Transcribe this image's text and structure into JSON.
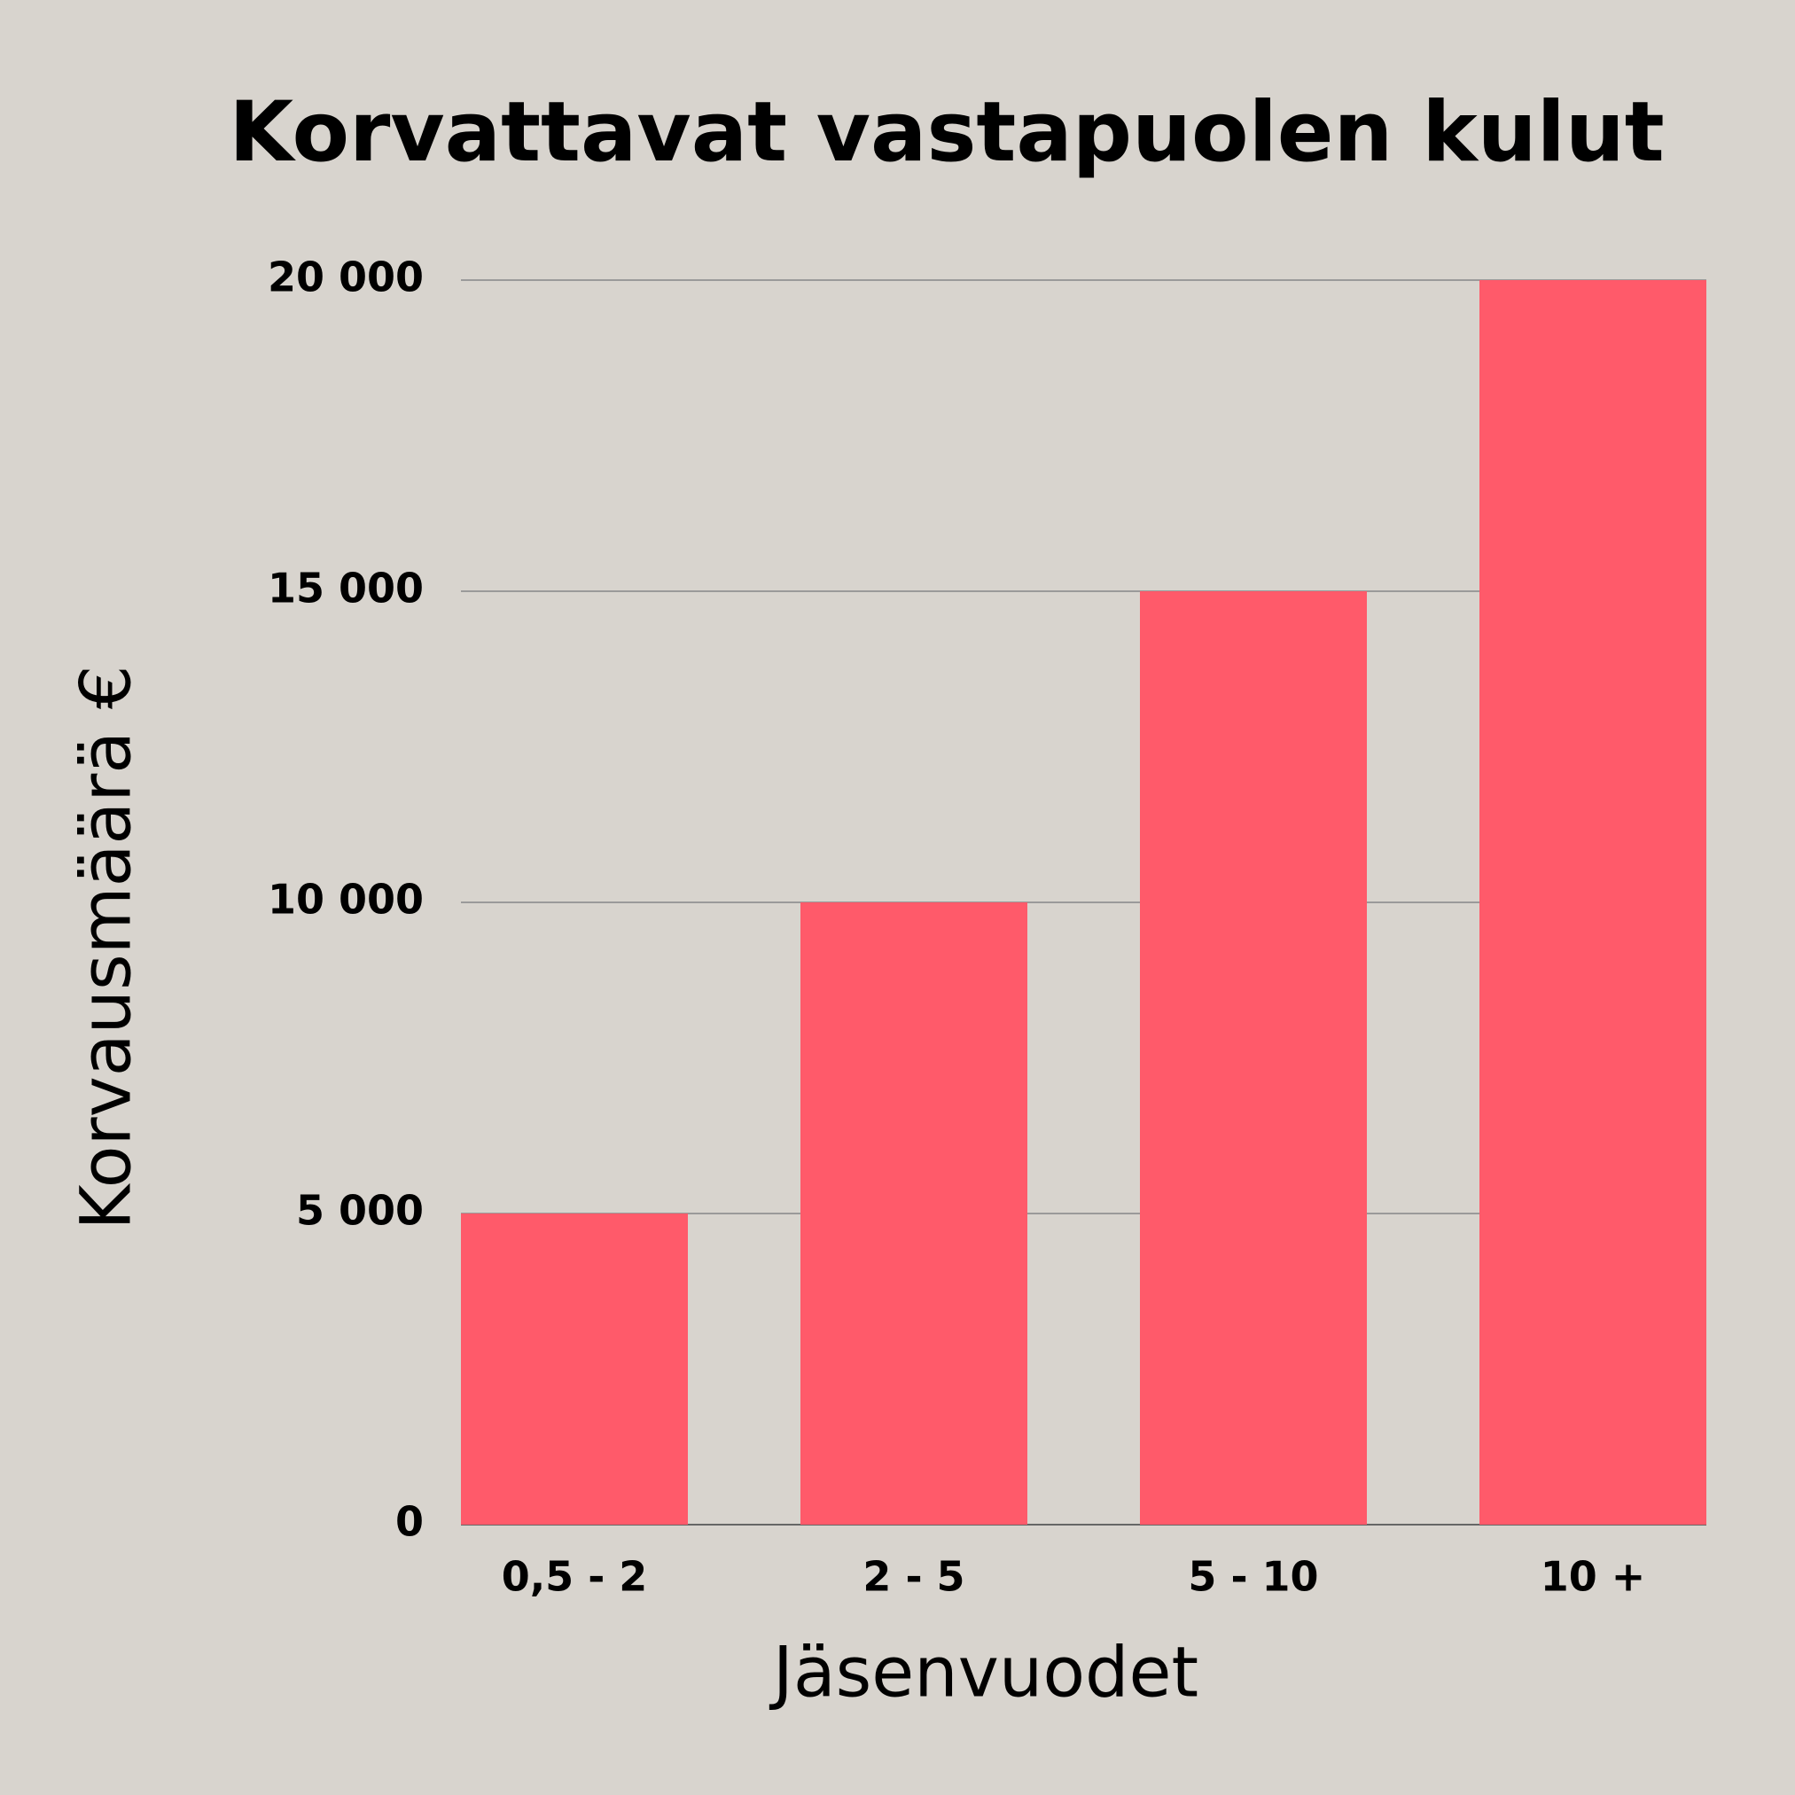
{
  "chart_data": {
    "type": "bar",
    "title": "Korvattavat vastapuolen kulut",
    "x_label": "Jäsenvuodet",
    "y_label": "Korvausmäärä €",
    "categories": [
      "0,5 - 2",
      "2 - 5",
      "5 - 10",
      "10 +"
    ],
    "values": [
      5000,
      10000,
      15000,
      20000
    ],
    "color": "#ff5a6a",
    "ylim": [
      0,
      20000
    ],
    "yticks": [
      0,
      {
        "value": 5000,
        "label": "5 000"
      },
      {
        "value": 10000,
        "label": "10 000"
      },
      {
        "value": 15000,
        "label": "15 000"
      },
      {
        "value": 20000,
        "label": "20 000"
      }
    ],
    "grid": true
  }
}
